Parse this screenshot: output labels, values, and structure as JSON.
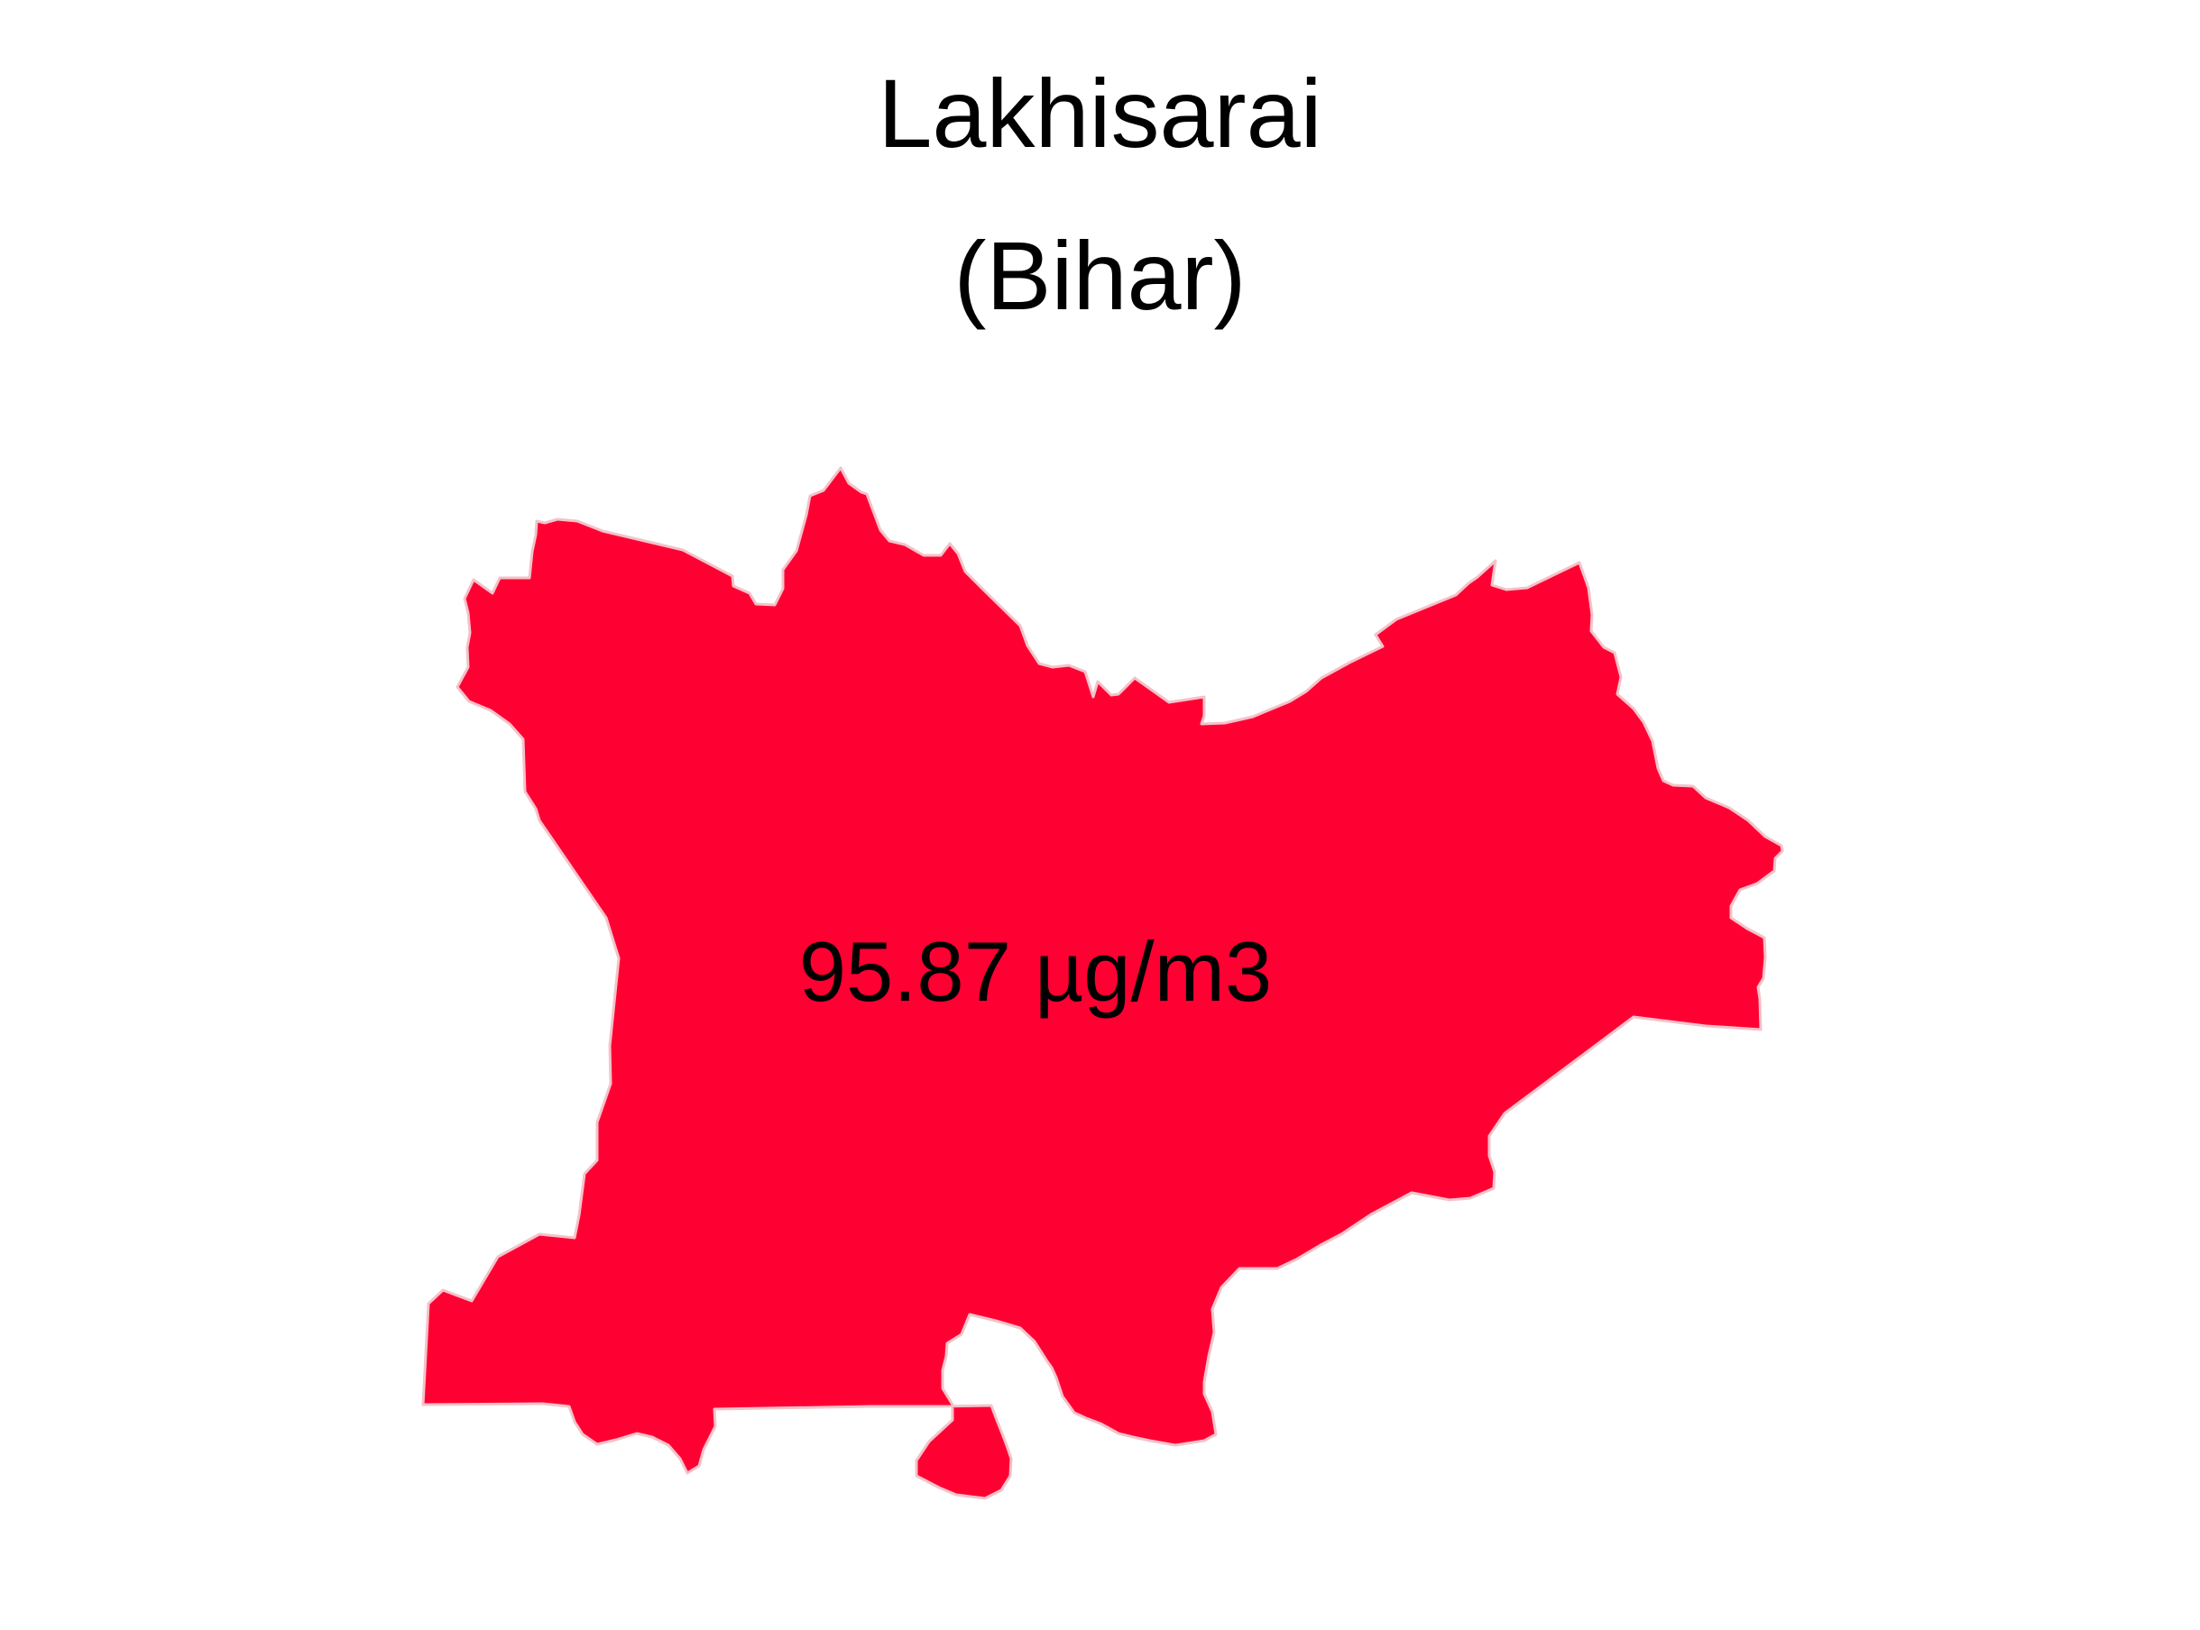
{
  "map": {
    "title": "Lakhisarai",
    "subtitle": "(Bihar)",
    "region_name": "Lakhisarai",
    "state": "Bihar",
    "value_label": "95.87 µg/m3",
    "value": 95.87,
    "unit": "µg/m3",
    "fill_color": "#ff0033",
    "border_color": "#f3c2c9",
    "background_color": "#ffffff"
  }
}
